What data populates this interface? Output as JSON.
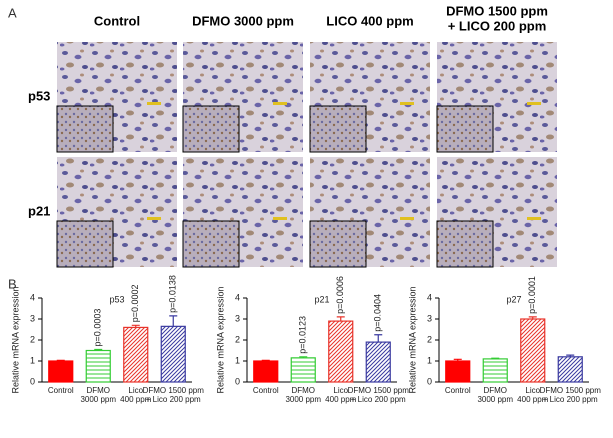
{
  "panel_a": {
    "label": "A",
    "columns": [
      [
        "Control"
      ],
      [
        "DFMO 3000 ppm"
      ],
      [
        "LICO 400 ppm"
      ],
      [
        "DFMO 1500 ppm",
        "+ LICO 200 ppm"
      ]
    ],
    "rows": [
      "p53",
      "p21"
    ]
  },
  "panel_b": {
    "label": "B"
  },
  "chart_data": [
    {
      "type": "bar",
      "title": "p53",
      "ylabel": "Relative mRNA expression",
      "categories": [
        [
          "Control"
        ],
        [
          "DFMO",
          "3000 ppm"
        ],
        [
          "Lico",
          "400 ppm"
        ],
        [
          "DFMO 1500 ppm",
          "+ Lico 200 ppm"
        ]
      ],
      "values": [
        1.0,
        1.5,
        2.6,
        2.65
      ],
      "errors": [
        0.03,
        0.05,
        0.1,
        0.5
      ],
      "annotations": [
        null,
        "p=0.0003",
        "p=0.0002",
        "p=0.0138"
      ],
      "colors": [
        "#ff0000",
        "#33cc33",
        "#e8332a",
        "#3a3aa0"
      ],
      "patterns": [
        "solid",
        "horizontal",
        "diagonal",
        "diagonal"
      ],
      "ylim": [
        0,
        4
      ],
      "yticks": [
        0,
        1,
        2,
        3,
        4
      ]
    },
    {
      "type": "bar",
      "title": "p21",
      "ylabel": "Relative mRNA expression",
      "categories": [
        [
          "Control"
        ],
        [
          "DFMO",
          "3000 ppm"
        ],
        [
          "Lico",
          "400 ppm"
        ],
        [
          "DFMO 1500 ppm",
          "+ Lico 200 ppm"
        ]
      ],
      "values": [
        1.0,
        1.15,
        2.9,
        1.9
      ],
      "errors": [
        0.03,
        0.05,
        0.2,
        0.35
      ],
      "annotations": [
        null,
        "p=0.0123",
        "p=0.0006",
        "p=0.0404"
      ],
      "colors": [
        "#ff0000",
        "#33cc33",
        "#e8332a",
        "#3a3aa0"
      ],
      "patterns": [
        "solid",
        "horizontal",
        "diagonal",
        "diagonal"
      ],
      "ylim": [
        0,
        4
      ],
      "yticks": [
        0,
        1,
        2,
        3,
        4
      ]
    },
    {
      "type": "bar",
      "title": "p27",
      "ylabel": "Relative mRNA expression",
      "categories": [
        [
          "Control"
        ],
        [
          "DFMO",
          "3000 ppm"
        ],
        [
          "Lico",
          "400 ppm"
        ],
        [
          "DFMO 1500 ppm",
          "+ Lico 200 ppm"
        ]
      ],
      "values": [
        1.0,
        1.1,
        3.0,
        1.2
      ],
      "errors": [
        0.08,
        0.03,
        0.1,
        0.08
      ],
      "annotations": [
        null,
        null,
        "p=0.0001",
        null
      ],
      "colors": [
        "#ff0000",
        "#33cc33",
        "#e8332a",
        "#3a3aa0"
      ],
      "patterns": [
        "solid",
        "horizontal",
        "diagonal",
        "diagonal"
      ],
      "ylim": [
        0,
        4
      ],
      "yticks": [
        0,
        1,
        2,
        3,
        4
      ]
    }
  ]
}
